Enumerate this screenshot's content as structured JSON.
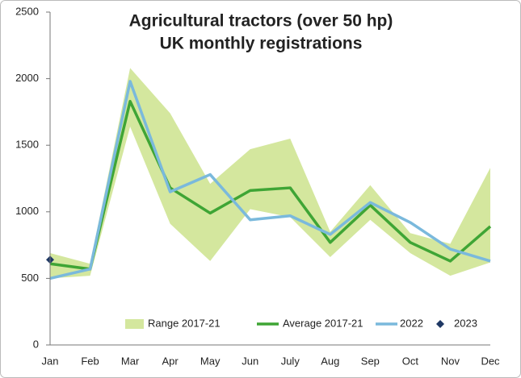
{
  "chart_data": {
    "type": "line",
    "title": [
      "Agricultural tractors (over 50 hp)",
      "UK monthly registrations"
    ],
    "categories": [
      "Jan",
      "Feb",
      "Mar",
      "Apr",
      "May",
      "Jun",
      "July",
      "Aug",
      "Sep",
      "Oct",
      "Nov",
      "Dec"
    ],
    "ylim": [
      0,
      2500
    ],
    "yticks": [
      0,
      500,
      1000,
      1500,
      2000,
      2500
    ],
    "legend": "bottom",
    "series": [
      {
        "name": "Range 2017-21",
        "kind": "range",
        "color": "#d4e79e",
        "lower": [
          500,
          520,
          1640,
          910,
          630,
          1020,
          960,
          660,
          940,
          690,
          520,
          620
        ],
        "upper": [
          690,
          610,
          2080,
          1740,
          1210,
          1470,
          1550,
          850,
          1200,
          840,
          760,
          1330
        ]
      },
      {
        "name": "Average 2017-21",
        "kind": "line",
        "color": "#3fa535",
        "values": [
          610,
          570,
          1830,
          1180,
          990,
          1160,
          1180,
          770,
          1050,
          770,
          630,
          890
        ]
      },
      {
        "name": "2022",
        "kind": "line",
        "color": "#7ab9dc",
        "values": [
          500,
          570,
          1980,
          1150,
          1280,
          940,
          970,
          830,
          1070,
          920,
          720,
          630
        ]
      },
      {
        "name": "2023",
        "kind": "marker",
        "color": "#1f3864",
        "values": [
          640,
          null,
          null,
          null,
          null,
          null,
          null,
          null,
          null,
          null,
          null,
          null
        ]
      }
    ]
  }
}
